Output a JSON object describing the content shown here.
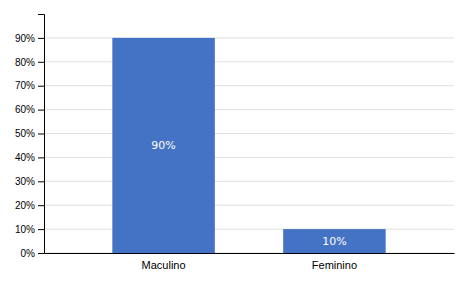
{
  "chart_data": {
    "type": "bar",
    "categories": [
      "Maculino",
      "Feminino"
    ],
    "values": [
      90,
      10
    ],
    "value_labels": [
      "90%",
      "10%"
    ],
    "data_labels": true,
    "color": "#4472C4",
    "ylim": [
      0,
      100
    ],
    "yticks": [
      {
        "value": 0,
        "label": "0%"
      },
      {
        "value": 10,
        "label": "10%"
      },
      {
        "value": 20,
        "label": "20%"
      },
      {
        "value": 30,
        "label": "30%"
      },
      {
        "value": 40,
        "label": "40%"
      },
      {
        "value": 50,
        "label": "50%"
      },
      {
        "value": 60,
        "label": "60%"
      },
      {
        "value": 70,
        "label": "70%"
      },
      {
        "value": 80,
        "label": "80%"
      },
      {
        "value": 90,
        "label": "90%"
      }
    ],
    "grid": true
  }
}
